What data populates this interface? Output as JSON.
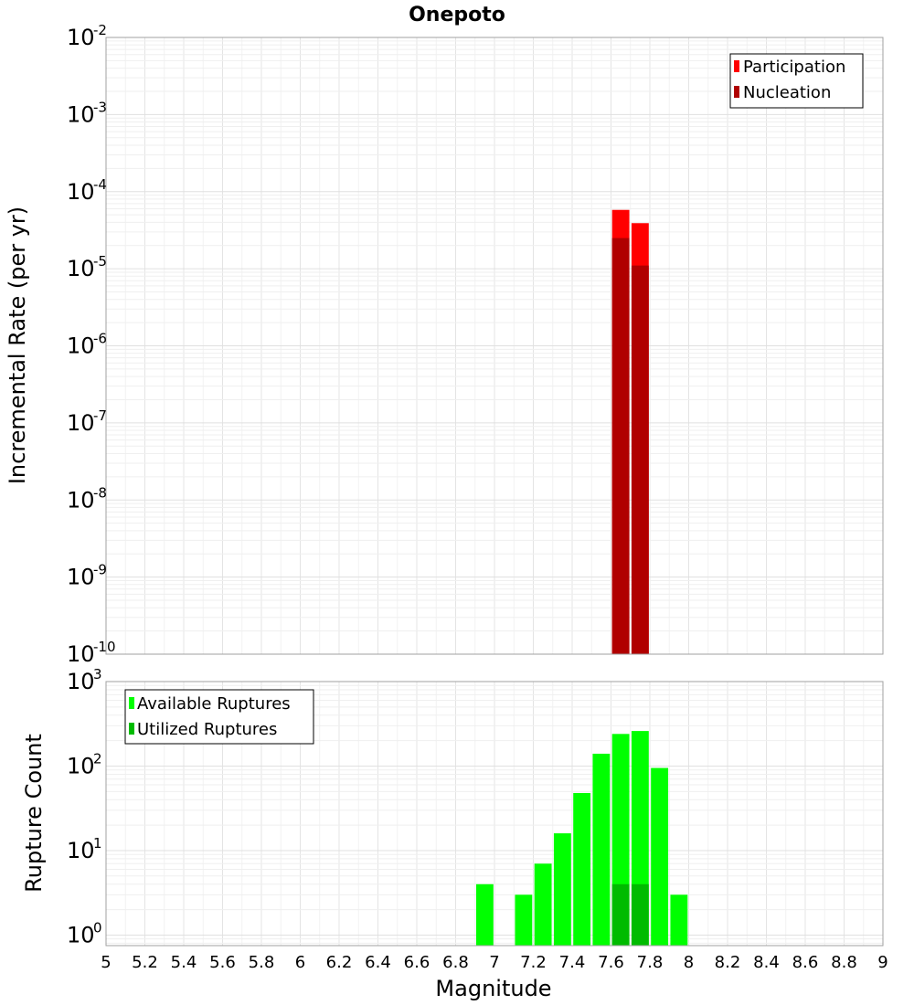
{
  "title": "Onepoto",
  "chart_data": [
    {
      "type": "bar",
      "ylabel": "Incremental Rate (per yr)",
      "xlabel": "",
      "xlim": [
        5,
        9
      ],
      "ylim": [
        1e-10,
        0.01
      ],
      "yscale": "log",
      "grid": true,
      "legend_position": "top-right",
      "bin_width": 0.1,
      "y_ticks": [
        {
          "base": "10",
          "exp": "-2",
          "value": 0.01
        },
        {
          "base": "10",
          "exp": "-3",
          "value": 0.001
        },
        {
          "base": "10",
          "exp": "-4",
          "value": 0.0001
        },
        {
          "base": "10",
          "exp": "-5",
          "value": 1e-05
        },
        {
          "base": "10",
          "exp": "-6",
          "value": 1e-06
        },
        {
          "base": "10",
          "exp": "-7",
          "value": 1e-07
        },
        {
          "base": "10",
          "exp": "-8",
          "value": 1e-08
        },
        {
          "base": "10",
          "exp": "-9",
          "value": 1e-09
        },
        {
          "base": "10",
          "exp": "-10",
          "value": 1e-10
        }
      ],
      "series": [
        {
          "name": "Participation",
          "color": "#ff0000",
          "points": [
            {
              "x": 7.65,
              "y": 5.8e-05
            },
            {
              "x": 7.75,
              "y": 3.9e-05
            }
          ]
        },
        {
          "name": "Nucleation",
          "color": "#b00000",
          "points": [
            {
              "x": 7.65,
              "y": 2.5e-05
            },
            {
              "x": 7.75,
              "y": 1.1e-05
            }
          ]
        }
      ]
    },
    {
      "type": "bar",
      "ylabel": "Rupture Count",
      "xlabel": "Magnitude",
      "xlim": [
        5,
        9
      ],
      "ylim": [
        0.75,
        1000
      ],
      "yscale": "log",
      "grid": true,
      "legend_position": "top-left",
      "bin_width": 0.1,
      "y_ticks": [
        {
          "base": "10",
          "exp": "3",
          "value": 1000
        },
        {
          "base": "10",
          "exp": "2",
          "value": 100
        },
        {
          "base": "10",
          "exp": "1",
          "value": 10
        },
        {
          "base": "10",
          "exp": "0",
          "value": 1
        }
      ],
      "x_ticks": [
        "5",
        "5.2",
        "5.4",
        "5.6",
        "5.8",
        "6",
        "6.2",
        "6.4",
        "6.6",
        "6.8",
        "7",
        "7.2",
        "7.4",
        "7.6",
        "7.8",
        "8",
        "8.2",
        "8.4",
        "8.6",
        "8.8",
        "9"
      ],
      "series": [
        {
          "name": "Available Ruptures",
          "color": "#00ff00",
          "points": [
            {
              "x": 6.95,
              "y": 4
            },
            {
              "x": 7.15,
              "y": 3
            },
            {
              "x": 7.25,
              "y": 7
            },
            {
              "x": 7.35,
              "y": 16
            },
            {
              "x": 7.45,
              "y": 48
            },
            {
              "x": 7.55,
              "y": 140
            },
            {
              "x": 7.65,
              "y": 240
            },
            {
              "x": 7.75,
              "y": 260
            },
            {
              "x": 7.85,
              "y": 95
            },
            {
              "x": 7.95,
              "y": 3
            }
          ]
        },
        {
          "name": "Utilized Ruptures",
          "color": "#00bb00",
          "points": [
            {
              "x": 7.65,
              "y": 4
            },
            {
              "x": 7.75,
              "y": 4
            }
          ]
        }
      ]
    }
  ]
}
